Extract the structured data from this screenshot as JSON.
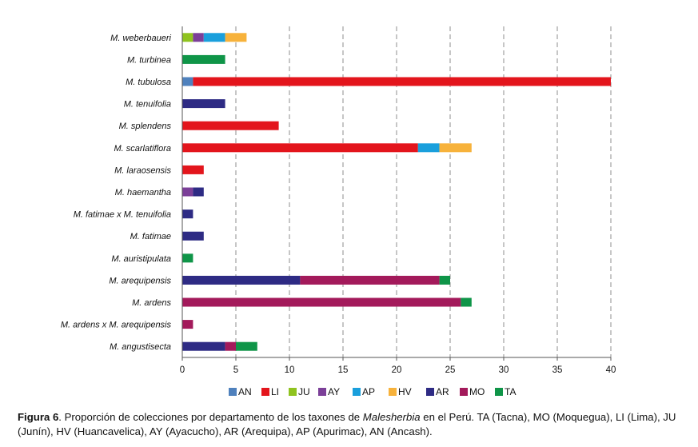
{
  "chart_data": {
    "type": "bar",
    "orientation": "horizontal",
    "stacked": true,
    "categories": [
      "M. weberbaueri",
      "M. turbinea",
      "M. tubulosa",
      "M. tenuifolia",
      "M. splendens",
      "M. scarlatiflora",
      "M. laraosensis",
      "M. haemantha",
      "M. fatimae x M. tenuifolia",
      "M. fatimae",
      "M. auristipulata",
      "M. arequipensis",
      "M. ardens",
      "M. ardens x M. arequipensis",
      "M. angustisecta"
    ],
    "series": [
      {
        "name": "AN",
        "color": "#4f81bd",
        "values": [
          0,
          0,
          1,
          0,
          0,
          0,
          0,
          0,
          0,
          0,
          0,
          0,
          0,
          0,
          0
        ]
      },
      {
        "name": "LI",
        "color": "#e3151c",
        "values": [
          0,
          0,
          39,
          0,
          9,
          22,
          2,
          0,
          0,
          0,
          0,
          0,
          0,
          0,
          0
        ]
      },
      {
        "name": "JU",
        "color": "#8fc31f",
        "values": [
          1,
          0,
          0,
          0,
          0,
          0,
          0,
          0,
          0,
          0,
          0,
          0,
          0,
          0,
          0
        ]
      },
      {
        "name": "AY",
        "color": "#7b3f98",
        "values": [
          1,
          0,
          0,
          0,
          0,
          0,
          0,
          1,
          0,
          0,
          0,
          0,
          0,
          0,
          0
        ]
      },
      {
        "name": "AP",
        "color": "#1a9fdc",
        "values": [
          2,
          0,
          0,
          0,
          0,
          2,
          0,
          0,
          0,
          0,
          0,
          0,
          0,
          0,
          0
        ]
      },
      {
        "name": "HV",
        "color": "#f7b23b",
        "values": [
          2,
          0,
          0,
          0,
          0,
          3,
          0,
          0,
          0,
          0,
          0,
          0,
          0,
          0,
          0
        ]
      },
      {
        "name": "AR",
        "color": "#2e2b84",
        "values": [
          0,
          0,
          0,
          4,
          0,
          0,
          0,
          1,
          1,
          2,
          0,
          11,
          0,
          0,
          4
        ]
      },
      {
        "name": "MO",
        "color": "#a31a5b",
        "values": [
          0,
          0,
          0,
          0,
          0,
          0,
          0,
          0,
          0,
          0,
          0,
          13,
          26,
          1,
          1
        ]
      },
      {
        "name": "TA",
        "color": "#0f9548",
        "values": [
          0,
          4,
          0,
          0,
          0,
          0,
          0,
          0,
          0,
          0,
          1,
          1,
          1,
          0,
          2
        ]
      }
    ],
    "xlim": [
      0,
      40
    ],
    "xticks": [
      0,
      5,
      10,
      15,
      20,
      25,
      30,
      35,
      40
    ],
    "grid": "vertical-dashed",
    "legend": "bottom"
  },
  "caption": {
    "label": "Figura 6",
    "text_before": ". Proporción de colecciones por departamento de los taxones de ",
    "genus": "Malesherbia",
    "text_after": " en el Perú. TA (Tacna), MO (Moquegua), LI (Lima), JU (Junín), HV (Huancavelica), AY (Ayacucho), AR (Arequipa), AP (Apurimac), AN (Ancash)."
  }
}
